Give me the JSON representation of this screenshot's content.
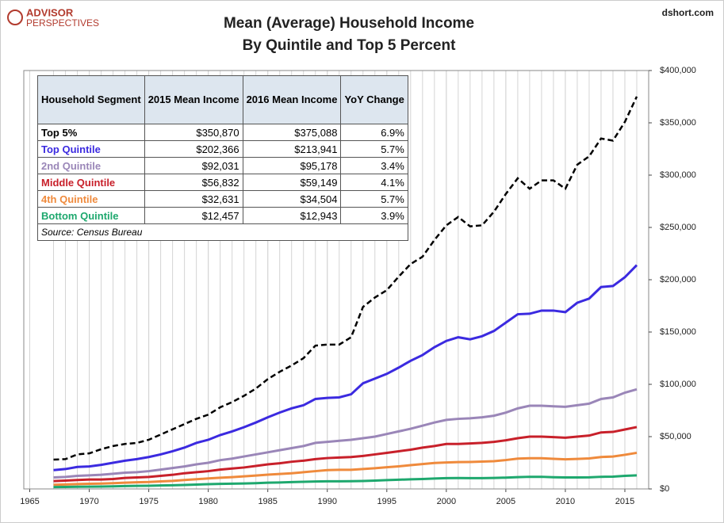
{
  "brand": "ADVISOR",
  "brand_line2": "PERSPECTIVES",
  "site": "dshort.com",
  "chart_data": {
    "type": "line",
    "title": "Mean (Average) Household Income",
    "subtitle": "By Quintile and Top 5 Percent",
    "x": [
      1967,
      1968,
      1969,
      1970,
      1971,
      1972,
      1973,
      1974,
      1975,
      1976,
      1977,
      1978,
      1979,
      1980,
      1981,
      1982,
      1983,
      1984,
      1985,
      1986,
      1987,
      1988,
      1989,
      1990,
      1991,
      1992,
      1993,
      1994,
      1995,
      1996,
      1997,
      1998,
      1999,
      2000,
      2001,
      2002,
      2003,
      2004,
      2005,
      2006,
      2007,
      2008,
      2009,
      2010,
      2011,
      2012,
      2013,
      2014,
      2015,
      2016
    ],
    "xlim": [
      1964.5,
      2017
    ],
    "xticks": [
      1965,
      1970,
      1975,
      1980,
      1985,
      1990,
      1995,
      2000,
      2005,
      2010,
      2015
    ],
    "ylim": [
      0,
      400000
    ],
    "yticks": [
      {
        "value": 0,
        "label": "$0"
      },
      {
        "value": 50000,
        "label": "$50,000"
      },
      {
        "value": 100000,
        "label": "$100,000"
      },
      {
        "value": 150000,
        "label": "$150,000"
      },
      {
        "value": 200000,
        "label": "$200,000"
      },
      {
        "value": 250000,
        "label": "$250,000"
      },
      {
        "value": 300000,
        "label": "$300,000"
      },
      {
        "value": 350000,
        "label": "$350,000"
      },
      {
        "value": 400000,
        "label": "$400,000"
      }
    ],
    "grid": "x",
    "series": [
      {
        "name": "Top 5%",
        "color": "#000000",
        "dashed": true,
        "values": [
          28000,
          28500,
          33000,
          34000,
          38000,
          41000,
          43000,
          44000,
          47000,
          52000,
          57000,
          62000,
          67000,
          71000,
          78000,
          83000,
          89000,
          96000,
          105000,
          112000,
          118000,
          125000,
          137000,
          138000,
          138000,
          145000,
          174000,
          183000,
          190000,
          203000,
          215000,
          222000,
          238000,
          252000,
          260000,
          251000,
          252000,
          265000,
          282000,
          297000,
          287000,
          295000,
          295000,
          287000,
          310000,
          318000,
          335000,
          333000,
          350870,
          375088
        ]
      },
      {
        "name": "Top Quintile",
        "color": "#3b2ae0",
        "values": [
          18000,
          19000,
          21000,
          21500,
          23000,
          25000,
          27000,
          28500,
          30500,
          33000,
          36000,
          39500,
          44000,
          47000,
          51500,
          55000,
          59000,
          63500,
          68500,
          73000,
          77000,
          80000,
          86000,
          87000,
          87500,
          90500,
          101000,
          105500,
          110000,
          116000,
          122500,
          128000,
          135500,
          141500,
          145000,
          143000,
          146000,
          151000,
          159000,
          167000,
          167500,
          170500,
          170500,
          169000,
          178000,
          182000,
          193000,
          194000,
          202366,
          213941
        ]
      },
      {
        "name": "2nd Quintile",
        "color": "#9a86b8",
        "values": [
          11000,
          11500,
          12500,
          13000,
          13500,
          14500,
          15500,
          16000,
          17000,
          18500,
          20000,
          21500,
          23500,
          25000,
          27500,
          29000,
          31000,
          33000,
          35000,
          37000,
          39000,
          41000,
          44000,
          45000,
          46000,
          47000,
          48500,
          50000,
          52500,
          55000,
          57500,
          60500,
          63500,
          66000,
          67000,
          67500,
          68500,
          70000,
          73000,
          77000,
          79500,
          79500,
          79000,
          78500,
          80000,
          81500,
          86000,
          87500,
          92031,
          95178
        ]
      },
      {
        "name": "Middle Quintile",
        "color": "#c8202a",
        "values": [
          7500,
          8000,
          8500,
          9000,
          9000,
          9500,
          10500,
          11000,
          11500,
          12500,
          13500,
          15000,
          16000,
          17000,
          18500,
          19500,
          20500,
          22000,
          23500,
          24500,
          26000,
          27000,
          28500,
          29500,
          30000,
          30500,
          31500,
          33000,
          34500,
          36000,
          37500,
          39500,
          41000,
          43000,
          43000,
          43500,
          44000,
          45000,
          46500,
          48500,
          50000,
          50000,
          49500,
          49000,
          50000,
          51000,
          54000,
          54500,
          56832,
          59149
        ]
      },
      {
        "name": "4th Quintile",
        "color": "#ef8a3c",
        "values": [
          4000,
          4300,
          4600,
          4900,
          5100,
          5500,
          6000,
          6300,
          6600,
          7200,
          7700,
          8500,
          9300,
          10000,
          10700,
          11300,
          12000,
          12800,
          13600,
          14300,
          15000,
          16000,
          17000,
          18000,
          18300,
          18300,
          19000,
          19800,
          20700,
          21600,
          22700,
          23800,
          24800,
          25300,
          25700,
          25800,
          26100,
          26500,
          27600,
          29000,
          29400,
          29400,
          28800,
          28300,
          28700,
          29200,
          30500,
          31000,
          32631,
          34504
        ]
      },
      {
        "name": "Bottom Quintile",
        "color": "#1ea86e",
        "values": [
          1800,
          1900,
          2100,
          2200,
          2300,
          2500,
          2700,
          2900,
          3000,
          3300,
          3500,
          3800,
          4200,
          4500,
          4800,
          5000,
          5200,
          5500,
          6000,
          6200,
          6500,
          6800,
          7100,
          7300,
          7300,
          7400,
          7600,
          8000,
          8400,
          8800,
          9200,
          9500,
          9900,
          10300,
          10400,
          10300,
          10300,
          10500,
          10800,
          11300,
          11600,
          11600,
          11200,
          11000,
          11000,
          11100,
          11600,
          11700,
          12457,
          12943
        ]
      }
    ]
  },
  "table": {
    "header": [
      "Household Segment",
      "2015 Mean Income",
      "2016 Mean Income",
      "YoY Change"
    ],
    "rows": [
      [
        "$350,870",
        "$375,088",
        "6.9%"
      ],
      [
        "$202,366",
        "$213,941",
        "5.7%"
      ],
      [
        "$92,031",
        "$95,178",
        "3.4%"
      ],
      [
        "$56,832",
        "$59,149",
        "4.1%"
      ],
      [
        "$32,631",
        "$34,504",
        "5.7%"
      ],
      [
        "$12,457",
        "$12,943",
        "3.9%"
      ]
    ],
    "source": "Source: Census Bureau"
  }
}
